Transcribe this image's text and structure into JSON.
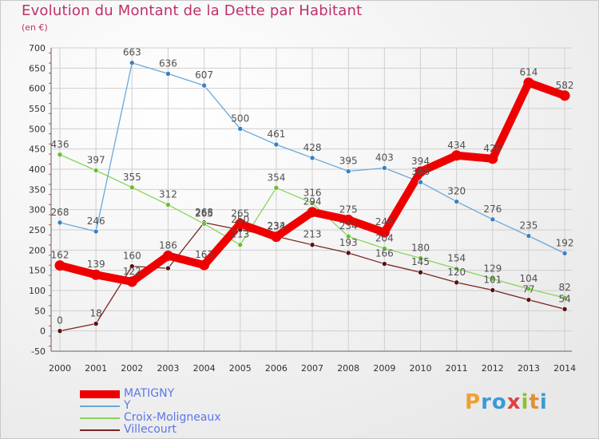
{
  "header": {
    "title": "Evolution du Montant de la Dette par Habitant",
    "subtitle": "(en €)"
  },
  "logo": {
    "letters": [
      "P",
      "r",
      "o",
      "x",
      "i",
      "t",
      "i"
    ],
    "colors": [
      "#f0a030",
      "#3a9ad8",
      "#3a9ad8",
      "#e04040",
      "#90c030",
      "#e09030",
      "#3a9ad8"
    ]
  },
  "colors": {
    "title": "#c0306a",
    "axis_text": "#303030",
    "grid": "#cfcfcf",
    "legend_text": "#5a78e6"
  },
  "chart_data": {
    "type": "line",
    "x": [
      2000,
      2001,
      2002,
      2003,
      2004,
      2005,
      2006,
      2007,
      2008,
      2009,
      2010,
      2011,
      2012,
      2013,
      2014
    ],
    "xlabels": [
      "2000",
      "2001",
      "2002",
      "2003",
      "2004",
      "2005",
      "2006",
      "2007",
      "2008",
      "2009",
      "2010",
      "2011",
      "2012",
      "2013",
      "2014"
    ],
    "ylim": [
      -50,
      700
    ],
    "yticks": [
      "-50",
      "0",
      "50",
      "100",
      "150",
      "200",
      "250",
      "300",
      "350",
      "400",
      "450",
      "500",
      "550",
      "600",
      "650",
      "700"
    ],
    "yticks_values": [
      -50,
      0,
      50,
      100,
      150,
      200,
      250,
      300,
      350,
      400,
      450,
      500,
      550,
      600,
      650,
      700
    ],
    "grid": true,
    "legend_position": "bottom-left",
    "series": [
      {
        "name": "Villecourt",
        "color": "#7a2424",
        "point_color": "#5a1010",
        "values": [
          0,
          18,
          160,
          155,
          268,
          250,
          234,
          213,
          193,
          166,
          145,
          120,
          101,
          77,
          54
        ],
        "labels": [
          "0",
          "18",
          "160",
          "",
          "268",
          "250",
          "234",
          "213",
          "193",
          "166",
          "145",
          "120",
          "101",
          "77",
          "54"
        ]
      },
      {
        "name": "Croix-Moligneaux",
        "color": "#88d458",
        "point_color": "#66c030",
        "values": [
          436,
          397,
          355,
          312,
          265,
          213,
          354,
          316,
          234,
          204,
          180,
          154,
          129,
          104,
          82
        ],
        "labels": [
          "436",
          "397",
          "355",
          "312",
          "265",
          "213",
          "354",
          "316",
          "234",
          "204",
          "180",
          "154",
          "129",
          "104",
          "82"
        ]
      },
      {
        "name": "Y",
        "color": "#6aa8d8",
        "point_color": "#3a80c0",
        "values": [
          268,
          246,
          663,
          636,
          607,
          500,
          461,
          428,
          395,
          403,
          368,
          320,
          276,
          235,
          192
        ],
        "labels": [
          "268",
          "246",
          "663",
          "636",
          "607",
          "500",
          "461",
          "428",
          "395",
          "403",
          "368",
          "320",
          "276",
          "235",
          "192"
        ]
      },
      {
        "name": "MATIGNY",
        "color": "#ee0000",
        "point_color": "#ee0000",
        "values": [
          162,
          139,
          122,
          186,
          163,
          265,
          233,
          294,
          275,
          244,
          394,
          434,
          426,
          614,
          582
        ],
        "labels": [
          "162",
          "139",
          "122",
          "186",
          "163",
          "265",
          "233",
          "294",
          "275",
          "244",
          "394",
          "434",
          "426",
          "614",
          "582"
        ]
      }
    ]
  },
  "legend": {
    "items": [
      {
        "name": "MATIGNY",
        "color": "#ee0000"
      },
      {
        "name": "Y",
        "color": "#6aa8d8"
      },
      {
        "name": "Croix-Moligneaux",
        "color": "#88d458"
      },
      {
        "name": "Villecourt",
        "color": "#7a2424"
      }
    ]
  }
}
